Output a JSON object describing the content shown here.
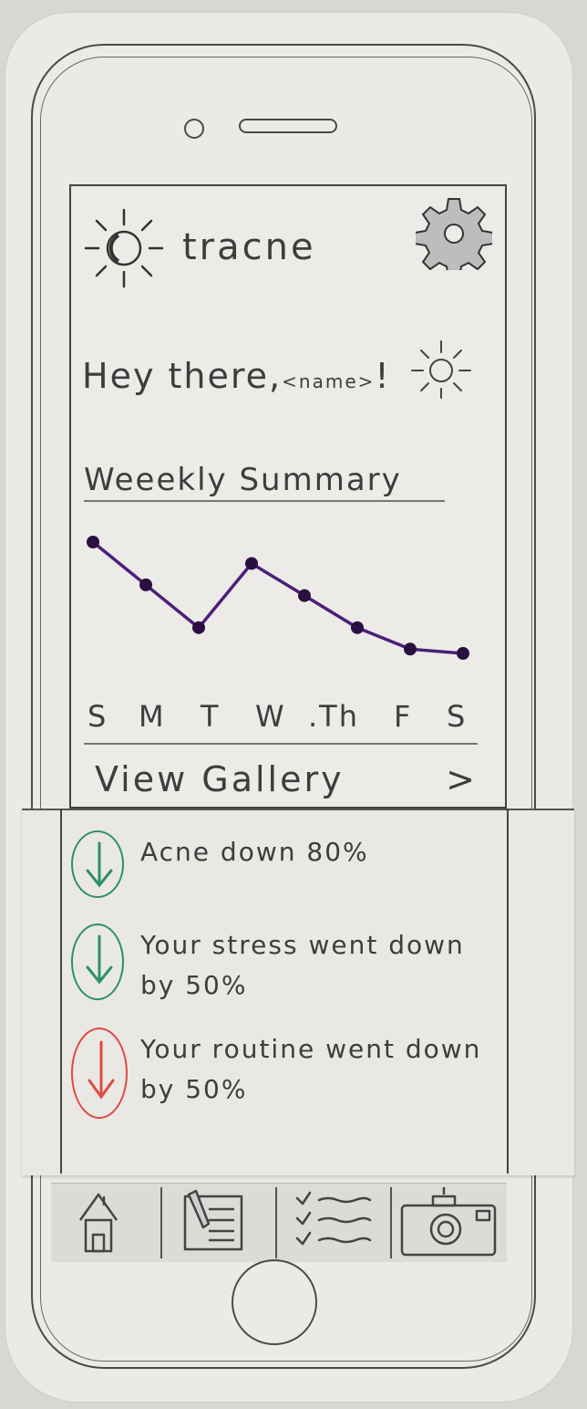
{
  "app": {
    "title": "tracne"
  },
  "greeting": {
    "prefix": "Hey there,",
    "name": "<name>",
    "suffix": "!"
  },
  "summary": {
    "title": "Weeekly Summary",
    "gallery_label": "View Gallery",
    "gallery_chevron": ">"
  },
  "chart_data": {
    "type": "line",
    "categories": [
      "S",
      "M",
      "T",
      "W",
      ".Th",
      "F",
      "S"
    ],
    "x": [
      0,
      1,
      2,
      3,
      4,
      5,
      6,
      7
    ],
    "values": [
      10,
      8,
      6,
      9,
      7.5,
      6,
      5,
      4.8
    ],
    "title": "Weeekly Summary",
    "line_color": "#4b1f7a"
  },
  "stats": [
    {
      "text": "Acne down 80%",
      "direction": "down",
      "color": "#2f8f6b"
    },
    {
      "text": "Your stress went down by 50%",
      "direction": "down",
      "color": "#2f8f6b"
    },
    {
      "text": "Your routine went down by 50%",
      "direction": "down",
      "color": "#e04a3f"
    }
  ],
  "tabs": [
    {
      "icon": "home-icon"
    },
    {
      "icon": "journal-icon"
    },
    {
      "icon": "checklist-icon"
    },
    {
      "icon": "camera-icon"
    }
  ]
}
